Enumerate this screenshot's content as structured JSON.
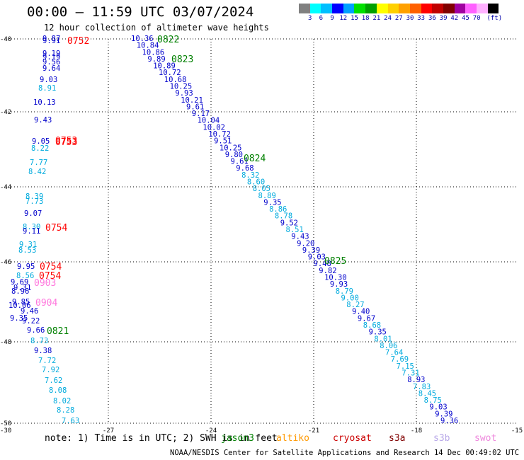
{
  "title": "00:00 – 11:59 UTC 03/07/2024",
  "subtitle": "12 hour collection of altimeter wave heights",
  "legend": {
    "colors": [
      "#808080",
      "#00ffff",
      "#00bfff",
      "#0000ff",
      "#00a0ff",
      "#00e000",
      "#00a000",
      "#ffff00",
      "#ffd000",
      "#ffa000",
      "#ff6000",
      "#ff0000",
      "#c00000",
      "#800000",
      "#a000a0",
      "#ff60ff",
      "#ffb0ff",
      "#000000"
    ],
    "labels": [
      "3",
      "6",
      "9",
      "12",
      "15",
      "18",
      "21",
      "24",
      "27",
      "30",
      "33",
      "36",
      "39",
      "42",
      "45",
      "70",
      "(ft)"
    ]
  },
  "axes": {
    "x_ticks": [
      "-27",
      "-24",
      "-21",
      "-18",
      "-15"
    ],
    "y_ticks": [
      "-40",
      "-42",
      "-44",
      "-46",
      "-48",
      "-50"
    ],
    "corner_label": "-30"
  },
  "note": "note:  1) Time is in UTC; 2) SWH is in feet",
  "satellites": [
    {
      "name": "jason3",
      "color": "#008000"
    },
    {
      "name": "altiko",
      "color": "#ff9900"
    },
    {
      "name": "cryosat",
      "color": "#cc0000"
    },
    {
      "name": "s3a",
      "color": "#800000"
    },
    {
      "name": "s3b",
      "color": "#b8a8e8"
    },
    {
      "name": "swot",
      "color": "#ee88dd"
    }
  ],
  "footer": "NOAA/NESDIS Center for Satellite Applications and Research    14 Dec 00:49:02 UTC 2024",
  "pass_times": [
    {
      "text": "0752",
      "color": "#ff0000"
    },
    {
      "text": "0753",
      "color": "#ff0000"
    },
    {
      "text": "0753",
      "color": "#ff0000"
    },
    {
      "text": "0754",
      "color": "#ff0000"
    },
    {
      "text": "0754",
      "color": "#ff0000"
    },
    {
      "text": "0754",
      "color": "#ff0000"
    },
    {
      "text": "0903",
      "color": "#ff77dd"
    },
    {
      "text": "0904",
      "color": "#ff77dd"
    },
    {
      "text": "0821",
      "color": "#008000"
    },
    {
      "text": "0822",
      "color": "#008000"
    },
    {
      "text": "0823",
      "color": "#008000"
    },
    {
      "text": "0824",
      "color": "#008000"
    },
    {
      "text": "0825",
      "color": "#008000"
    }
  ],
  "track_left": {
    "values": [
      "9.87",
      "9.91",
      "9.19",
      "9.19",
      "9.56",
      "9.64",
      "9.03",
      "8.91",
      "10.13",
      "9.43",
      "9.05",
      "8.22",
      "7.77",
      "8.42",
      "8.39",
      "7.73",
      "9.07",
      "8.30",
      "9.11",
      "9.31",
      "8.53",
      "9.95",
      "8.56",
      "9.69",
      "9.31",
      "8.96",
      "9.85",
      "10.06",
      "9.46",
      "9.35",
      "9.22",
      "9.66",
      "8.73",
      "9.38",
      "7.72",
      "7.92",
      "7.62",
      "8.08",
      "8.02",
      "8.28",
      "7.63"
    ],
    "colors": [
      "d",
      "d",
      "d",
      "d",
      "d",
      "d",
      "d",
      "c",
      "d",
      "d",
      "d",
      "c",
      "c",
      "c",
      "c",
      "c",
      "d",
      "c",
      "d",
      "c",
      "c",
      "d",
      "c",
      "d",
      "d",
      "d",
      "d",
      "d",
      "d",
      "d",
      "d",
      "d",
      "c",
      "d",
      "c",
      "c",
      "c",
      "c",
      "c",
      "c",
      "c"
    ]
  },
  "track_right": {
    "values": [
      "10.36",
      "10.84",
      "10.86",
      "9.89",
      "10.89",
      "10.72",
      "10.68",
      "10.25",
      "9.93",
      "10.21",
      "9.61",
      "9.17",
      "10.04",
      "10.02",
      "10.72",
      "9.51",
      "10.25",
      "9.80",
      "9.61",
      "9.68",
      "8.32",
      "8.60",
      "8.05",
      "8.89",
      "9.35",
      "8.86",
      "8.78",
      "9.52",
      "8.51",
      "9.43",
      "9.20",
      "9.39",
      "9.03",
      "9.48",
      "9.82",
      "10.30",
      "9.93",
      "8.79",
      "9.00",
      "8.27",
      "9.40",
      "9.67",
      "8.68",
      "9.35",
      "8.01",
      "8.06",
      "7.64",
      "7.69",
      "7.15",
      "7.31",
      "8.93",
      "7.83",
      "8.45",
      "8.75",
      "9.03",
      "9.39",
      "9.36"
    ],
    "colors": [
      "d",
      "d",
      "d",
      "d",
      "d",
      "d",
      "d",
      "d",
      "d",
      "d",
      "d",
      "d",
      "d",
      "d",
      "d",
      "d",
      "d",
      "d",
      "d",
      "d",
      "c",
      "c",
      "c",
      "c",
      "d",
      "c",
      "c",
      "d",
      "c",
      "d",
      "d",
      "d",
      "d",
      "d",
      "d",
      "d",
      "d",
      "c",
      "c",
      "c",
      "d",
      "d",
      "c",
      "d",
      "c",
      "c",
      "c",
      "c",
      "c",
      "c",
      "d",
      "c",
      "c",
      "c",
      "d",
      "d",
      "d"
    ]
  }
}
